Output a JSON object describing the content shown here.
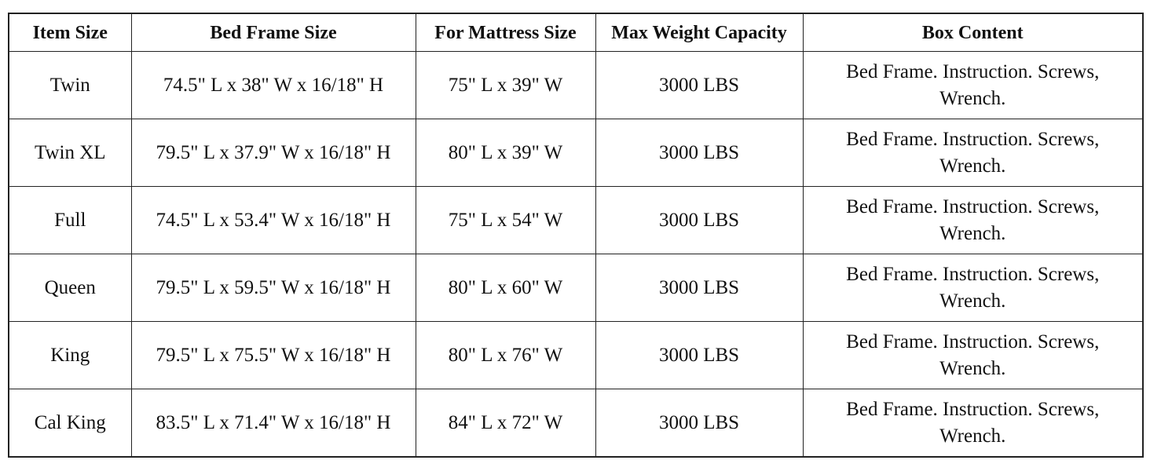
{
  "table": {
    "header": [
      "Item Size",
      "Bed Frame Size",
      "For Mattress Size",
      "Max Weight Capacity",
      "Box Content"
    ],
    "rows": [
      [
        "Twin",
        "74.5\" L x 38\" W x 16/18\" H",
        "75\" L x 39\" W",
        "3000 LBS",
        "Bed Frame. Instruction. Screws, Wrench."
      ],
      [
        "Twin XL",
        "79.5\" L x 37.9\" W x 16/18\" H",
        "80\" L x 39\" W",
        "3000 LBS",
        "Bed Frame. Instruction. Screws, Wrench."
      ],
      [
        "Full",
        "74.5\" L x 53.4\" W x 16/18\" H",
        "75\" L x 54\" W",
        "3000 LBS",
        "Bed Frame. Instruction. Screws, Wrench."
      ],
      [
        "Queen",
        "79.5\" L x 59.5\" W x 16/18\" H",
        "80\" L x 60\" W",
        "3000 LBS",
        "Bed Frame. Instruction. Screws, Wrench."
      ],
      [
        "King",
        "79.5\" L x 75.5\" W x 16/18\" H",
        "80\" L x 76\" W",
        "3000 LBS",
        "Bed Frame. Instruction. Screws, Wrench."
      ],
      [
        "Cal King",
        "83.5\" L x 71.4\" W x 16/18\" H",
        "84\" L x 72\" W",
        "3000 LBS",
        "Bed Frame. Instruction. Screws, Wrench."
      ]
    ]
  }
}
